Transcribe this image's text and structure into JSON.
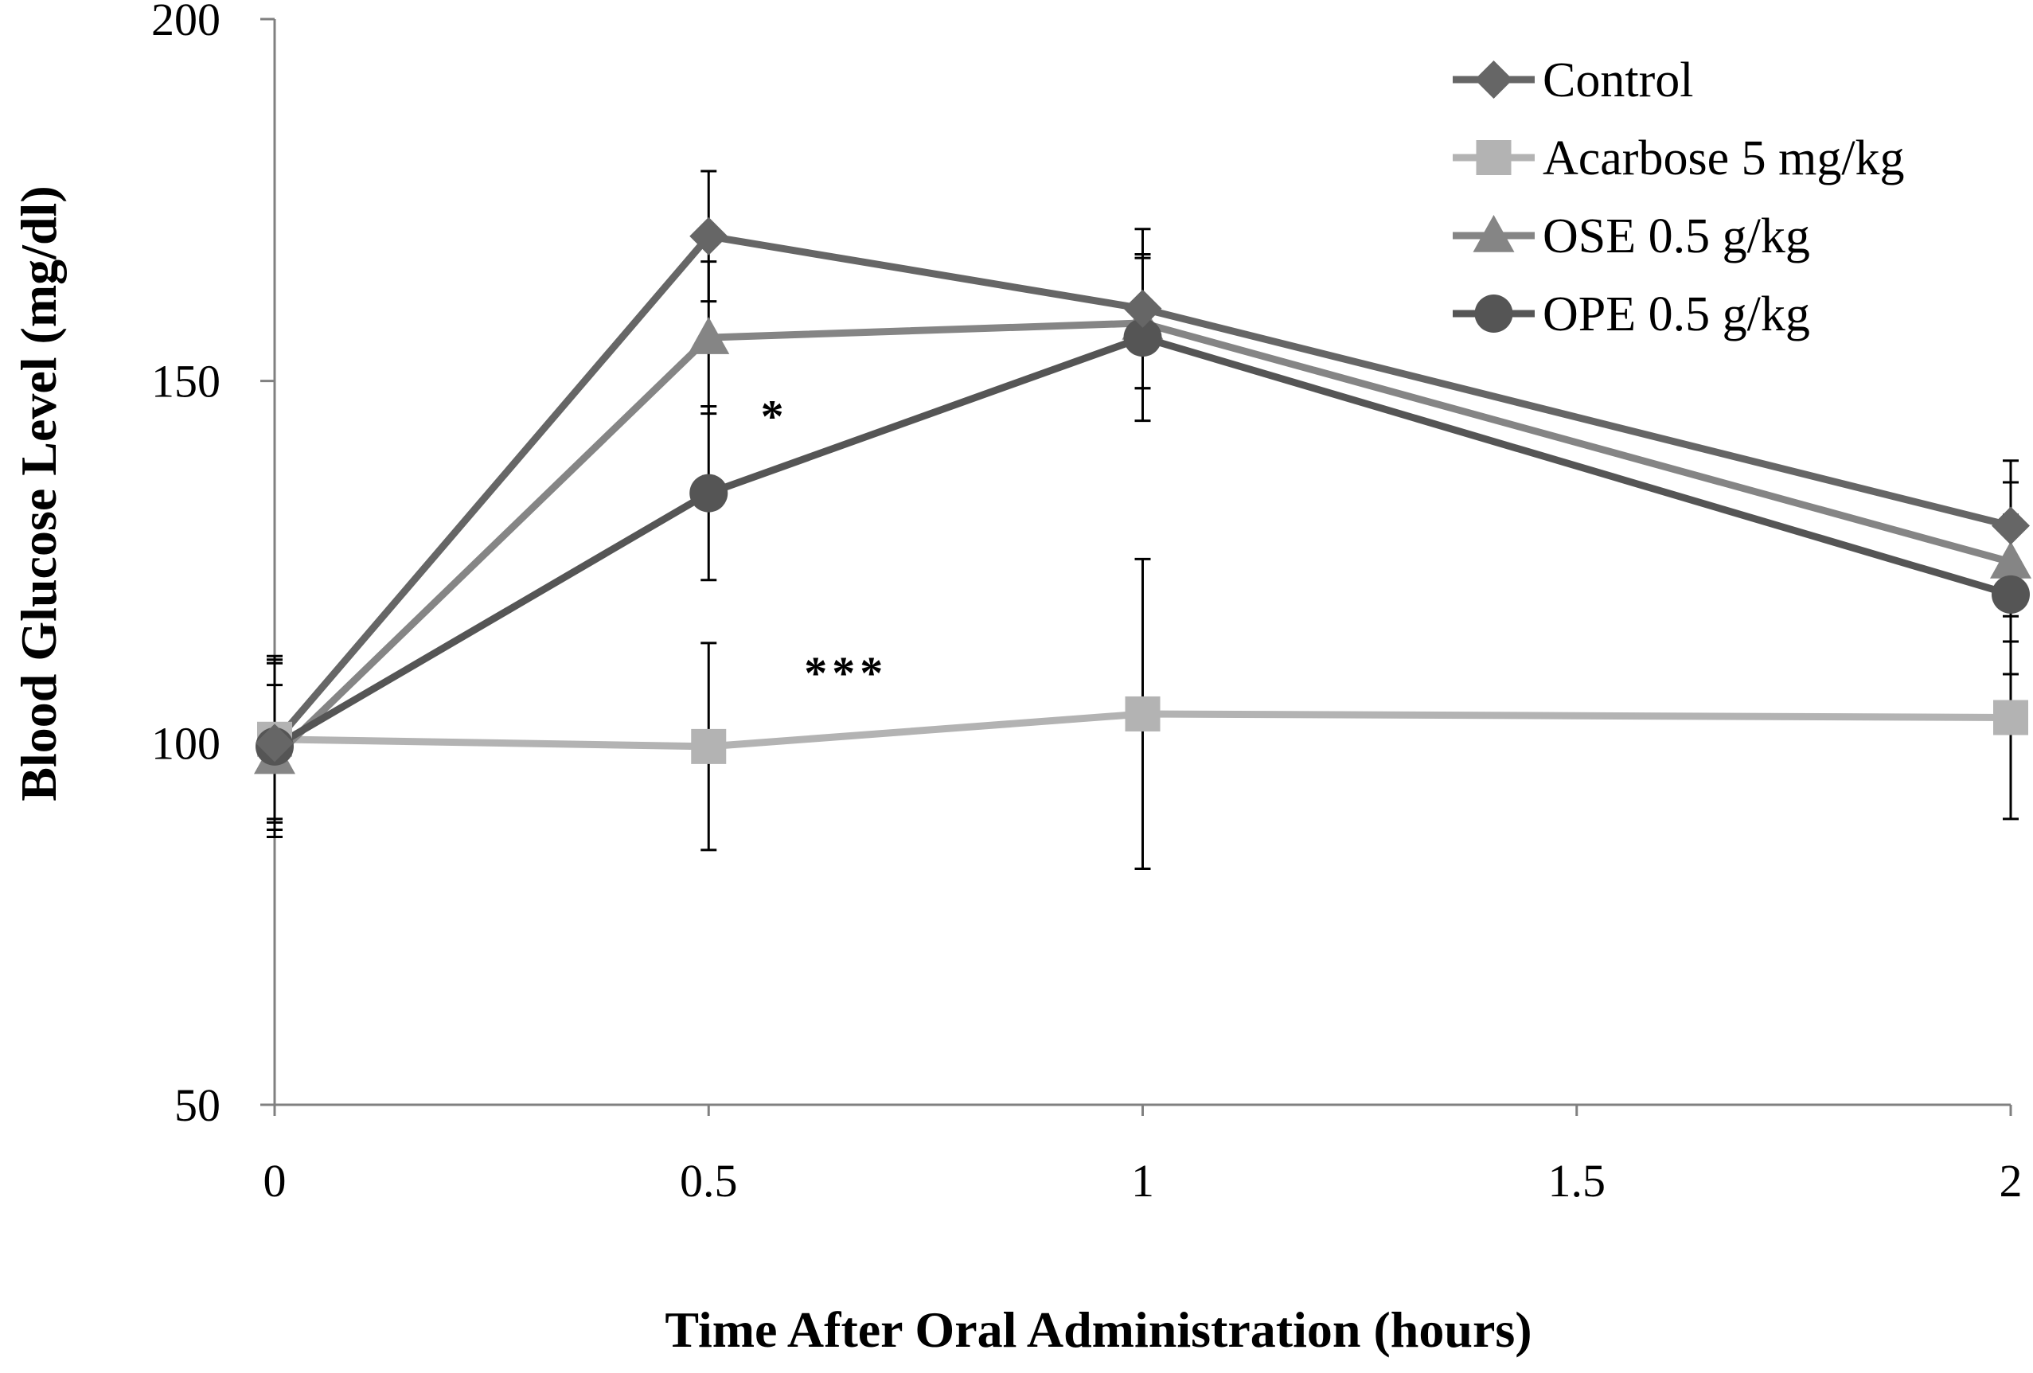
{
  "chart_data": {
    "type": "line",
    "title": "",
    "xlabel": "Time After Oral Administration  (hours)",
    "ylabel": "Blood Glucose Level (mg/dl)",
    "x": [
      0,
      0.5,
      1,
      2
    ],
    "xlim": [
      0,
      2
    ],
    "ylim": [
      50,
      200
    ],
    "xticks": [
      0,
      0.5,
      1,
      1.5,
      2
    ],
    "xtick_labels": [
      "0",
      "0.5",
      "1",
      "1.5",
      "2"
    ],
    "yticks": [
      50,
      100,
      150,
      200
    ],
    "ytick_labels": [
      "50",
      "100",
      "150",
      "200"
    ],
    "grid": false,
    "legend_position": "top-right",
    "series": [
      {
        "name": "Control",
        "marker": "diamond",
        "color": "#666666",
        "values": [
          100,
          170,
          160,
          130
        ],
        "errors": [
          11,
          9,
          11,
          9
        ]
      },
      {
        "name": "Acarbose 5 mg/kg",
        "marker": "square",
        "color": "#b3b3b3",
        "values": [
          100.5,
          99.5,
          104,
          103.5
        ],
        "errors": [
          11,
          14.3,
          21.4,
          14
        ]
      },
      {
        "name": "OSE 0.5 g/kg",
        "marker": "triangle",
        "color": "#858585",
        "values": [
          98,
          156,
          158,
          125
        ],
        "errors": [
          10,
          10.5,
          9,
          11
        ]
      },
      {
        "name": "OPE 0.5 g/kg",
        "marker": "circle",
        "color": "#555555",
        "values": [
          99.5,
          134.5,
          156,
          120.5
        ],
        "errors": [
          12.5,
          12,
          11.5,
          11
        ]
      }
    ],
    "annotations": [
      {
        "text": "*",
        "x": 0.56,
        "y": 143
      },
      {
        "text": "***",
        "x": 0.61,
        "y": 107.5
      }
    ]
  }
}
